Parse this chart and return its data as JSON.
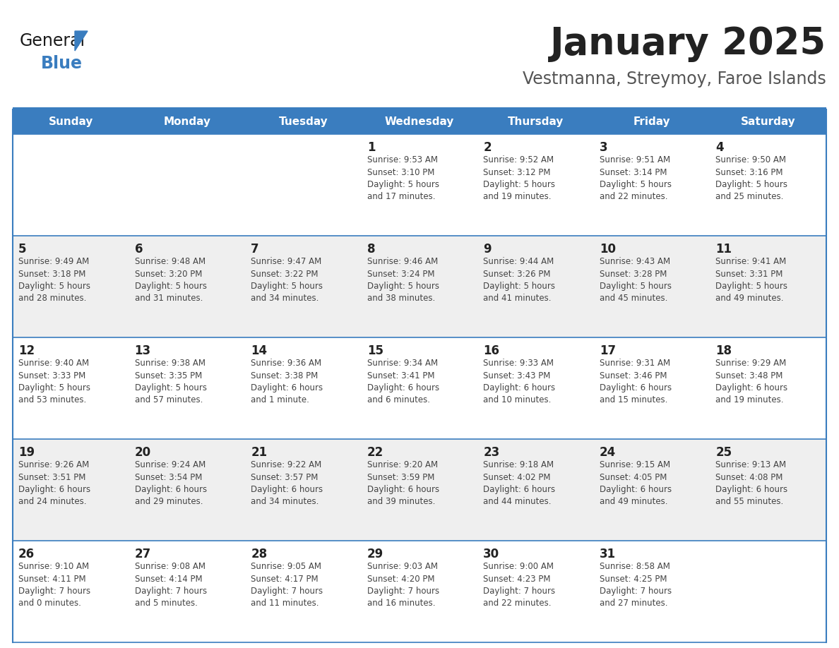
{
  "title": "January 2025",
  "subtitle": "Vestmanna, Streymoy, Faroe Islands",
  "header_color": "#3a7dbf",
  "header_text_color": "#ffffff",
  "day_names": [
    "Sunday",
    "Monday",
    "Tuesday",
    "Wednesday",
    "Thursday",
    "Friday",
    "Saturday"
  ],
  "bg_color": "#ffffff",
  "row_colors": [
    "#ffffff",
    "#efefef",
    "#ffffff",
    "#efefef",
    "#ffffff"
  ],
  "cell_border_color": "#3a7dbf",
  "title_color": "#222222",
  "subtitle_color": "#555555",
  "day_num_color": "#222222",
  "cell_text_color": "#444444",
  "logo_color_general": "#1a1a1a",
  "logo_color_blue": "#3a7dbf",
  "calendar": [
    [
      {
        "day": "",
        "info": ""
      },
      {
        "day": "",
        "info": ""
      },
      {
        "day": "",
        "info": ""
      },
      {
        "day": "1",
        "info": "Sunrise: 9:53 AM\nSunset: 3:10 PM\nDaylight: 5 hours\nand 17 minutes."
      },
      {
        "day": "2",
        "info": "Sunrise: 9:52 AM\nSunset: 3:12 PM\nDaylight: 5 hours\nand 19 minutes."
      },
      {
        "day": "3",
        "info": "Sunrise: 9:51 AM\nSunset: 3:14 PM\nDaylight: 5 hours\nand 22 minutes."
      },
      {
        "day": "4",
        "info": "Sunrise: 9:50 AM\nSunset: 3:16 PM\nDaylight: 5 hours\nand 25 minutes."
      }
    ],
    [
      {
        "day": "5",
        "info": "Sunrise: 9:49 AM\nSunset: 3:18 PM\nDaylight: 5 hours\nand 28 minutes."
      },
      {
        "day": "6",
        "info": "Sunrise: 9:48 AM\nSunset: 3:20 PM\nDaylight: 5 hours\nand 31 minutes."
      },
      {
        "day": "7",
        "info": "Sunrise: 9:47 AM\nSunset: 3:22 PM\nDaylight: 5 hours\nand 34 minutes."
      },
      {
        "day": "8",
        "info": "Sunrise: 9:46 AM\nSunset: 3:24 PM\nDaylight: 5 hours\nand 38 minutes."
      },
      {
        "day": "9",
        "info": "Sunrise: 9:44 AM\nSunset: 3:26 PM\nDaylight: 5 hours\nand 41 minutes."
      },
      {
        "day": "10",
        "info": "Sunrise: 9:43 AM\nSunset: 3:28 PM\nDaylight: 5 hours\nand 45 minutes."
      },
      {
        "day": "11",
        "info": "Sunrise: 9:41 AM\nSunset: 3:31 PM\nDaylight: 5 hours\nand 49 minutes."
      }
    ],
    [
      {
        "day": "12",
        "info": "Sunrise: 9:40 AM\nSunset: 3:33 PM\nDaylight: 5 hours\nand 53 minutes."
      },
      {
        "day": "13",
        "info": "Sunrise: 9:38 AM\nSunset: 3:35 PM\nDaylight: 5 hours\nand 57 minutes."
      },
      {
        "day": "14",
        "info": "Sunrise: 9:36 AM\nSunset: 3:38 PM\nDaylight: 6 hours\nand 1 minute."
      },
      {
        "day": "15",
        "info": "Sunrise: 9:34 AM\nSunset: 3:41 PM\nDaylight: 6 hours\nand 6 minutes."
      },
      {
        "day": "16",
        "info": "Sunrise: 9:33 AM\nSunset: 3:43 PM\nDaylight: 6 hours\nand 10 minutes."
      },
      {
        "day": "17",
        "info": "Sunrise: 9:31 AM\nSunset: 3:46 PM\nDaylight: 6 hours\nand 15 minutes."
      },
      {
        "day": "18",
        "info": "Sunrise: 9:29 AM\nSunset: 3:48 PM\nDaylight: 6 hours\nand 19 minutes."
      }
    ],
    [
      {
        "day": "19",
        "info": "Sunrise: 9:26 AM\nSunset: 3:51 PM\nDaylight: 6 hours\nand 24 minutes."
      },
      {
        "day": "20",
        "info": "Sunrise: 9:24 AM\nSunset: 3:54 PM\nDaylight: 6 hours\nand 29 minutes."
      },
      {
        "day": "21",
        "info": "Sunrise: 9:22 AM\nSunset: 3:57 PM\nDaylight: 6 hours\nand 34 minutes."
      },
      {
        "day": "22",
        "info": "Sunrise: 9:20 AM\nSunset: 3:59 PM\nDaylight: 6 hours\nand 39 minutes."
      },
      {
        "day": "23",
        "info": "Sunrise: 9:18 AM\nSunset: 4:02 PM\nDaylight: 6 hours\nand 44 minutes."
      },
      {
        "day": "24",
        "info": "Sunrise: 9:15 AM\nSunset: 4:05 PM\nDaylight: 6 hours\nand 49 minutes."
      },
      {
        "day": "25",
        "info": "Sunrise: 9:13 AM\nSunset: 4:08 PM\nDaylight: 6 hours\nand 55 minutes."
      }
    ],
    [
      {
        "day": "26",
        "info": "Sunrise: 9:10 AM\nSunset: 4:11 PM\nDaylight: 7 hours\nand 0 minutes."
      },
      {
        "day": "27",
        "info": "Sunrise: 9:08 AM\nSunset: 4:14 PM\nDaylight: 7 hours\nand 5 minutes."
      },
      {
        "day": "28",
        "info": "Sunrise: 9:05 AM\nSunset: 4:17 PM\nDaylight: 7 hours\nand 11 minutes."
      },
      {
        "day": "29",
        "info": "Sunrise: 9:03 AM\nSunset: 4:20 PM\nDaylight: 7 hours\nand 16 minutes."
      },
      {
        "day": "30",
        "info": "Sunrise: 9:00 AM\nSunset: 4:23 PM\nDaylight: 7 hours\nand 22 minutes."
      },
      {
        "day": "31",
        "info": "Sunrise: 8:58 AM\nSunset: 4:25 PM\nDaylight: 7 hours\nand 27 minutes."
      },
      {
        "day": "",
        "info": ""
      }
    ]
  ]
}
